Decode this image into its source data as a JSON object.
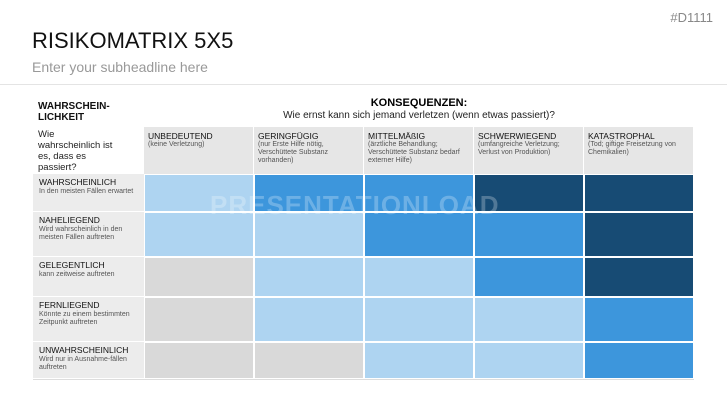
{
  "header": {
    "title": "RISIKOMATRIX 5X5",
    "subtitle": "Enter your subheadline here",
    "code": "#D1111"
  },
  "row_axis": {
    "title": "WAHRSCHEIN-LICHKEIT",
    "question": "Wie wahrscheinlich ist es, dass es passiert?"
  },
  "col_axis": {
    "title": "KONSEQUENZEN:",
    "question": "Wie ernst kann sich jemand verletzen (wenn etwas passiert)?"
  },
  "columns": [
    {
      "label": "UNBEDEUTEND",
      "description": "(keine Verletzung)"
    },
    {
      "label": "GERINGFÜGIG",
      "description": "(nur Erste Hilfe nötig, Verschüttete Substanz vorhanden)"
    },
    {
      "label": "MITTELMÄßIG",
      "description": "(ärztliche Behandlung; Verschüttete Substanz bedarf externer Hilfe)"
    },
    {
      "label": "SCHWERWIEGEND",
      "description": "(umfangreiche Verletzung; Verlust von Produktion)"
    },
    {
      "label": "KATASTROPHAL",
      "description": "(Tod; giftige Freisetzung von Chemikalien)"
    }
  ],
  "rows": [
    {
      "label": "WAHRSCHEINLICH",
      "description": "In den meisten Fällen erwartet"
    },
    {
      "label": "NAHELIEGEND",
      "description": "Wird wahrscheinlich in den meisten Fällen auftreten"
    },
    {
      "label": "GELEGENTLICH",
      "description": "kann zeitweise auftreten"
    },
    {
      "label": "FERNLIEGEND",
      "description": "Könnte zu einem bestimmten Zeitpunkt auftreten"
    },
    {
      "label": "UNWAHRSCHEINLICH",
      "description": "Wird nur in Ausnahme-fällen auftreten"
    }
  ],
  "watermark": "PRESENTATIONLOAD"
}
